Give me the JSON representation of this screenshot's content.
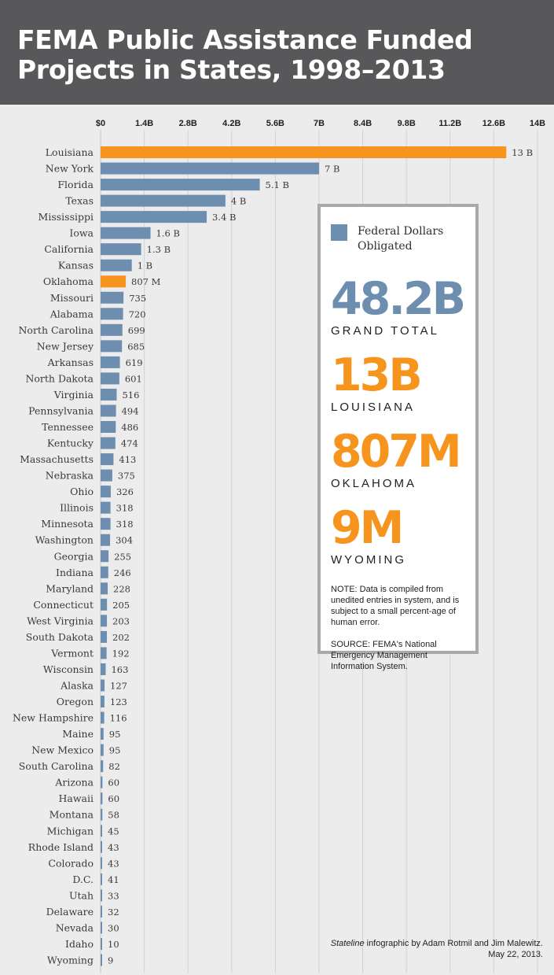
{
  "header": {
    "title_line1": "FEMA Public Assistance Funded",
    "title_line2": "Projects in States, 1998–2013"
  },
  "colors": {
    "federal": "#6e8eb0",
    "highlight": "#f7941d",
    "header_bg": "#58585a"
  },
  "chart_data": {
    "type": "bar",
    "orientation": "horizontal",
    "unit": "USD",
    "axis_ticks": [
      {
        "value": 0,
        "label": "$0"
      },
      {
        "value": 1.4,
        "label": "1.4B"
      },
      {
        "value": 2.8,
        "label": "2.8B"
      },
      {
        "value": 4.2,
        "label": "4.2B"
      },
      {
        "value": 5.6,
        "label": "5.6B"
      },
      {
        "value": 7,
        "label": "7B"
      },
      {
        "value": 8.4,
        "label": "8.4B"
      },
      {
        "value": 9.8,
        "label": "9.8B"
      },
      {
        "value": 11.2,
        "label": "11.2B"
      },
      {
        "value": 12.6,
        "label": "12.6B"
      },
      {
        "value": 14,
        "label": "14B"
      }
    ],
    "xlim_billions": [
      0,
      14
    ],
    "grid": true,
    "legend": "inside-right",
    "series_name": "Federal Dollars Obligated",
    "bars": [
      {
        "category": "Louisiana",
        "value_billions": 13,
        "label": "13 B",
        "highlight": true
      },
      {
        "category": "New York",
        "value_billions": 7,
        "label": "7 B",
        "highlight": false
      },
      {
        "category": "Florida",
        "value_billions": 5.1,
        "label": "5.1 B",
        "highlight": false
      },
      {
        "category": "Texas",
        "value_billions": 4,
        "label": "4 B",
        "highlight": false
      },
      {
        "category": "Mississippi",
        "value_billions": 3.4,
        "label": "3.4 B",
        "highlight": false
      },
      {
        "category": "Iowa",
        "value_billions": 1.6,
        "label": "1.6 B",
        "highlight": false
      },
      {
        "category": "California",
        "value_billions": 1.3,
        "label": "1.3 B",
        "highlight": false
      },
      {
        "category": "Kansas",
        "value_billions": 1,
        "label": "1 B",
        "highlight": false
      },
      {
        "category": "Oklahoma",
        "value_billions": 0.807,
        "label": "807 M",
        "highlight": true
      },
      {
        "category": "Missouri",
        "value_billions": 0.735,
        "label": "735",
        "highlight": false
      },
      {
        "category": "Alabama",
        "value_billions": 0.72,
        "label": "720",
        "highlight": false
      },
      {
        "category": "North Carolina",
        "value_billions": 0.699,
        "label": "699",
        "highlight": false
      },
      {
        "category": "New Jersey",
        "value_billions": 0.685,
        "label": "685",
        "highlight": false
      },
      {
        "category": "Arkansas",
        "value_billions": 0.619,
        "label": "619",
        "highlight": false
      },
      {
        "category": "North Dakota",
        "value_billions": 0.601,
        "label": "601",
        "highlight": false
      },
      {
        "category": "Virginia",
        "value_billions": 0.516,
        "label": "516",
        "highlight": false
      },
      {
        "category": "Pennsylvania",
        "value_billions": 0.494,
        "label": "494",
        "highlight": false
      },
      {
        "category": "Tennessee",
        "value_billions": 0.486,
        "label": "486",
        "highlight": false
      },
      {
        "category": "Kentucky",
        "value_billions": 0.474,
        "label": "474",
        "highlight": false
      },
      {
        "category": "Massachusetts",
        "value_billions": 0.413,
        "label": "413",
        "highlight": false
      },
      {
        "category": "Nebraska",
        "value_billions": 0.375,
        "label": "375",
        "highlight": false
      },
      {
        "category": "Ohio",
        "value_billions": 0.326,
        "label": "326",
        "highlight": false
      },
      {
        "category": "Illinois",
        "value_billions": 0.318,
        "label": "318",
        "highlight": false
      },
      {
        "category": "Minnesota",
        "value_billions": 0.318,
        "label": "318",
        "highlight": false
      },
      {
        "category": "Washington",
        "value_billions": 0.304,
        "label": "304",
        "highlight": false
      },
      {
        "category": "Georgia",
        "value_billions": 0.255,
        "label": "255",
        "highlight": false
      },
      {
        "category": "Indiana",
        "value_billions": 0.246,
        "label": "246",
        "highlight": false
      },
      {
        "category": "Maryland",
        "value_billions": 0.228,
        "label": "228",
        "highlight": false
      },
      {
        "category": "Connecticut",
        "value_billions": 0.205,
        "label": "205",
        "highlight": false
      },
      {
        "category": "West Virginia",
        "value_billions": 0.203,
        "label": "203",
        "highlight": false
      },
      {
        "category": "South Dakota",
        "value_billions": 0.202,
        "label": "202",
        "highlight": false
      },
      {
        "category": "Vermont",
        "value_billions": 0.192,
        "label": "192",
        "highlight": false
      },
      {
        "category": "Wisconsin",
        "value_billions": 0.163,
        "label": "163",
        "highlight": false
      },
      {
        "category": "Alaska",
        "value_billions": 0.127,
        "label": "127",
        "highlight": false
      },
      {
        "category": "Oregon",
        "value_billions": 0.123,
        "label": "123",
        "highlight": false
      },
      {
        "category": "New Hampshire",
        "value_billions": 0.116,
        "label": "116",
        "highlight": false
      },
      {
        "category": "Maine",
        "value_billions": 0.095,
        "label": "95",
        "highlight": false
      },
      {
        "category": "New Mexico",
        "value_billions": 0.095,
        "label": "95",
        "highlight": false
      },
      {
        "category": "South Carolina",
        "value_billions": 0.082,
        "label": "82",
        "highlight": false
      },
      {
        "category": "Arizona",
        "value_billions": 0.06,
        "label": "60",
        "highlight": false
      },
      {
        "category": "Hawaii",
        "value_billions": 0.06,
        "label": "60",
        "highlight": false
      },
      {
        "category": "Montana",
        "value_billions": 0.058,
        "label": "58",
        "highlight": false
      },
      {
        "category": "Michigan",
        "value_billions": 0.045,
        "label": "45",
        "highlight": false
      },
      {
        "category": "Rhode Island",
        "value_billions": 0.043,
        "label": "43",
        "highlight": false
      },
      {
        "category": "Colorado",
        "value_billions": 0.043,
        "label": "43",
        "highlight": false
      },
      {
        "category": "D.C.",
        "value_billions": 0.041,
        "label": "41",
        "highlight": false
      },
      {
        "category": "Utah",
        "value_billions": 0.033,
        "label": "33",
        "highlight": false
      },
      {
        "category": "Delaware",
        "value_billions": 0.032,
        "label": "32",
        "highlight": false
      },
      {
        "category": "Nevada",
        "value_billions": 0.03,
        "label": "30",
        "highlight": false
      },
      {
        "category": "Idaho",
        "value_billions": 0.01,
        "label": "10",
        "highlight": false
      },
      {
        "category": "Wyoming",
        "value_billions": 0.009,
        "label": "9",
        "highlight": false
      }
    ]
  },
  "panel": {
    "legend_label": "Federal Dollars Obligated",
    "stats": [
      {
        "value": "48.2B",
        "label": "GRAND TOTAL",
        "color": "#6e8eb0"
      },
      {
        "value": "13B",
        "label": "LOUISIANA",
        "color": "#f7941d"
      },
      {
        "value": "807M",
        "label": "OKLAHOMA",
        "color": "#f7941d"
      },
      {
        "value": "9M",
        "label": "WYOMING",
        "color": "#f7941d"
      }
    ],
    "note": "NOTE: Data is compiled from unedited entries in system, and is subject to a small percent-age of human error.",
    "source": "SOURCE:  FEMA's National Emergency Management Information System."
  },
  "credit": {
    "publication": "Stateline",
    "line1_rest": " infographic by Adam Rotmil and Jim Malewitz.",
    "line2": "May 22, 2013."
  }
}
